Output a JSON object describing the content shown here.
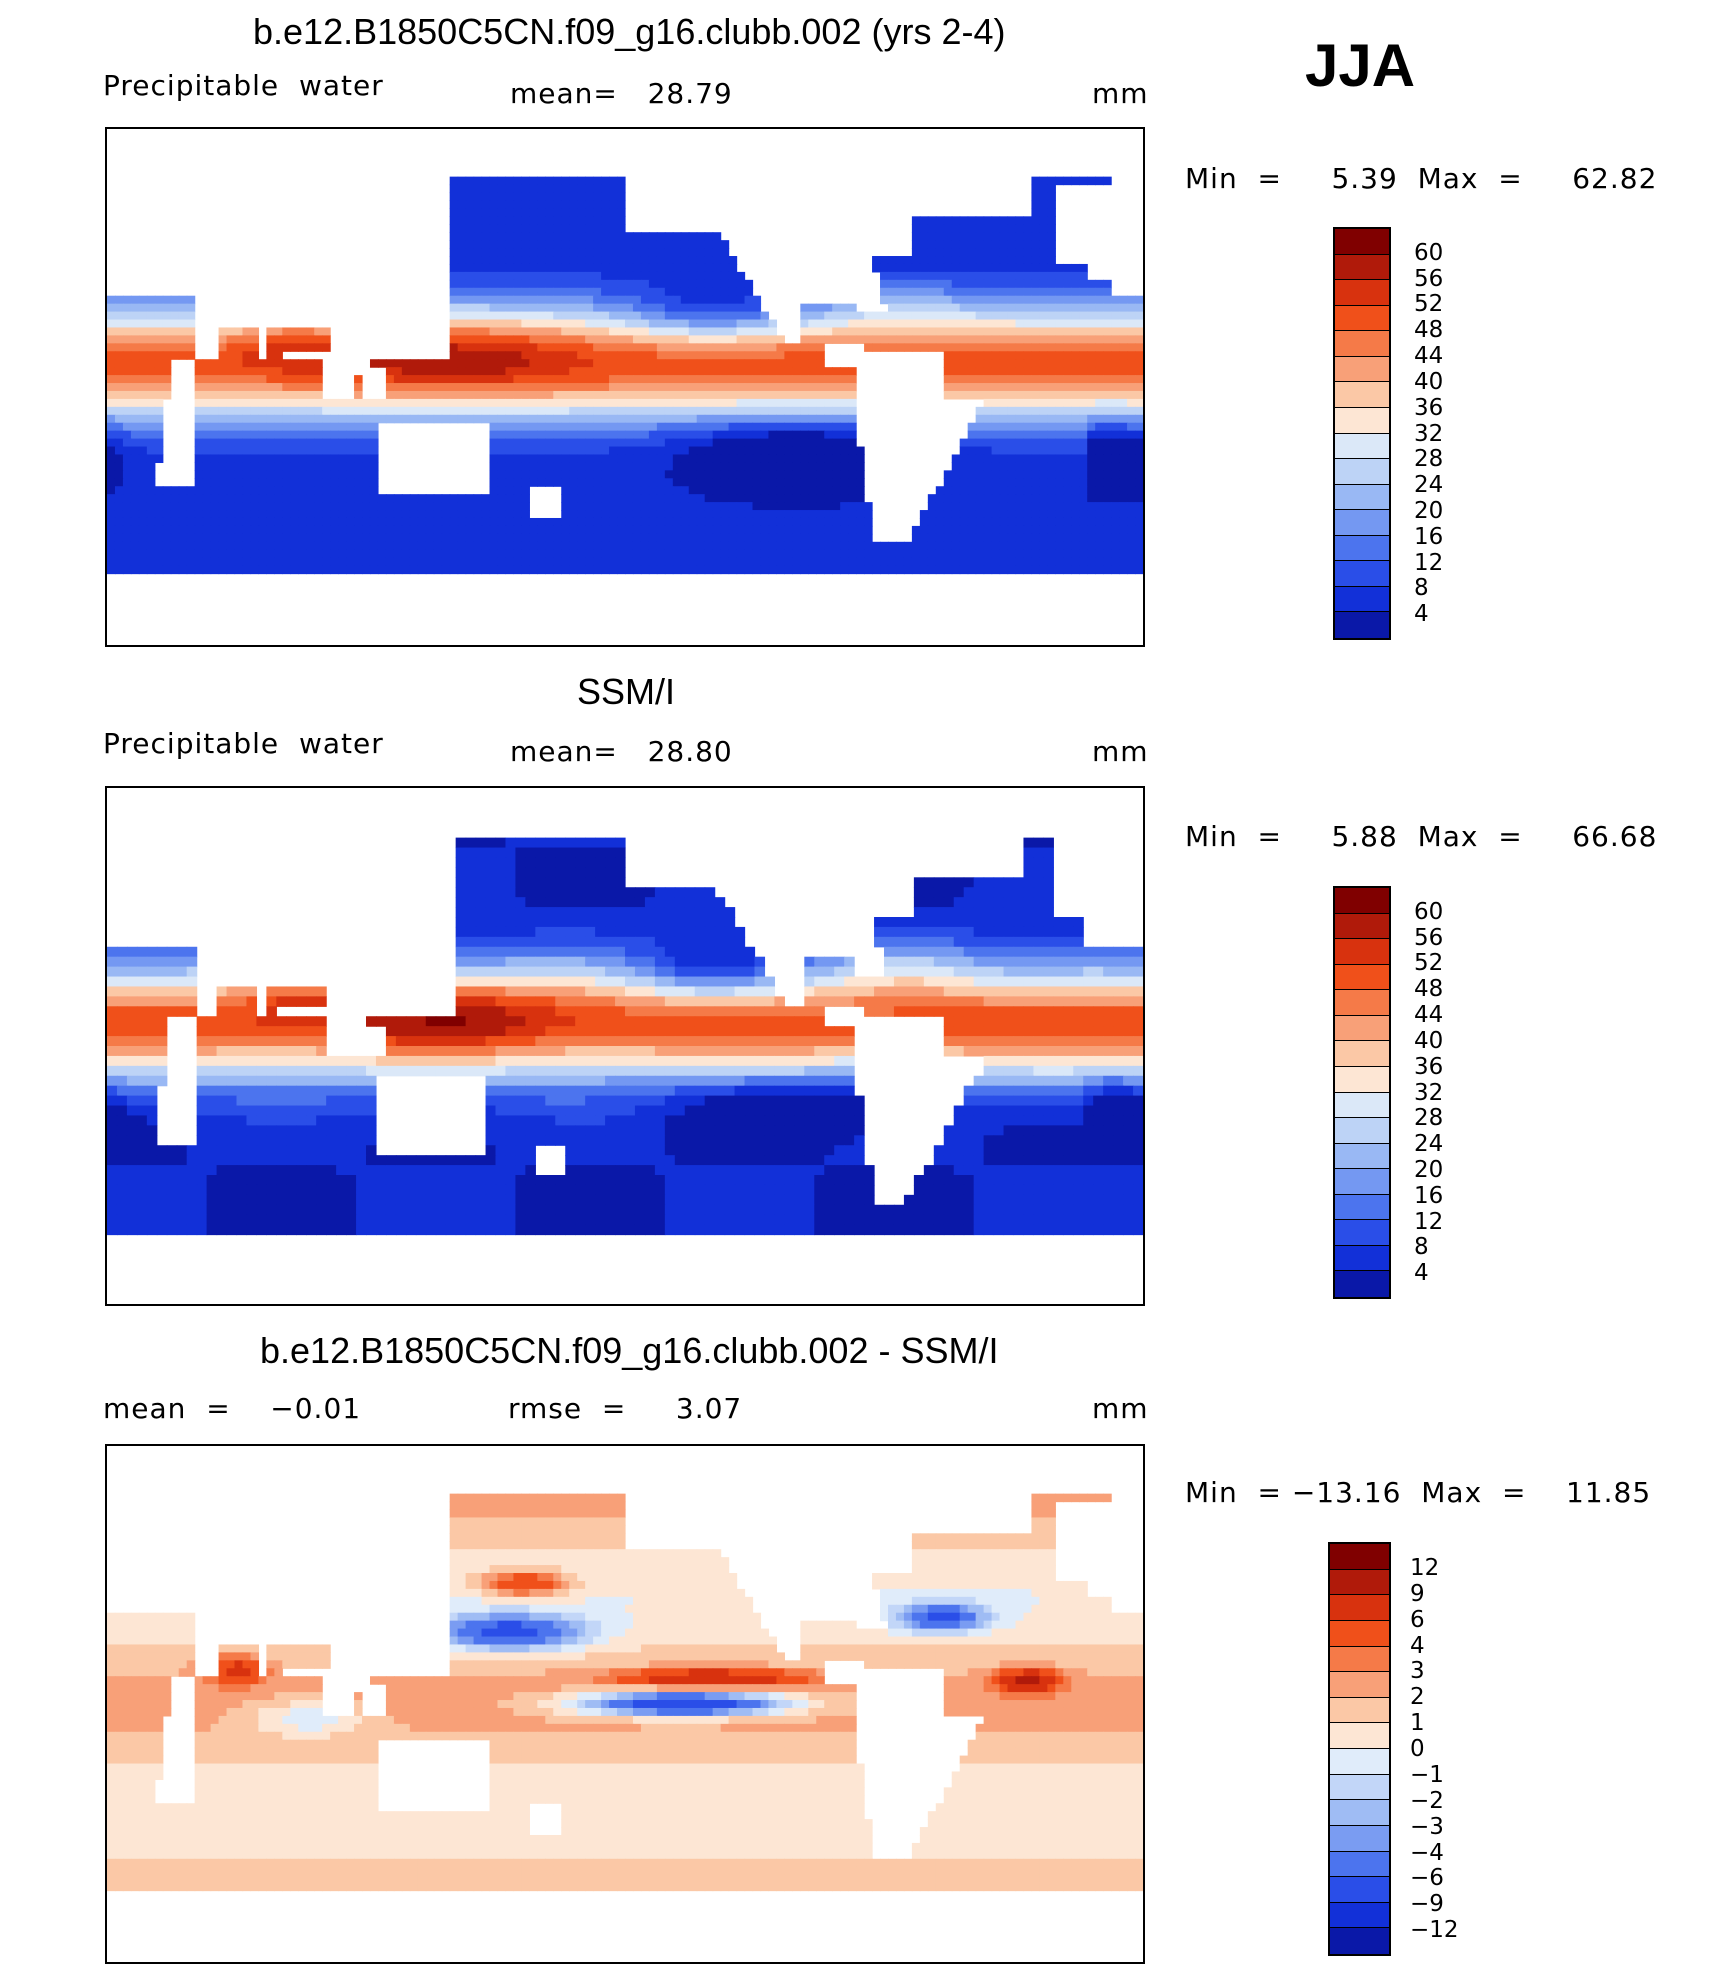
{
  "season": "JJA",
  "panels": [
    {
      "title": "b.e12.B1850C5CN.f09_g16.clubb.002 (yrs 2-4)",
      "left_label": "Precipitable  water",
      "mid_label": "mean=   28.79",
      "units": "mm",
      "minmax": "Min  =     5.39  Max  =     62.82",
      "field": "model",
      "levels": [
        "60",
        "56",
        "52",
        "48",
        "44",
        "40",
        "36",
        "32",
        "28",
        "24",
        "20",
        "16",
        "12",
        "8",
        "4"
      ]
    },
    {
      "title": "SSM/I",
      "left_label": "Precipitable  water",
      "mid_label": "mean=   28.80",
      "units": "mm",
      "minmax": "Min  =     5.88  Max  =     66.68",
      "field": "obs",
      "levels": [
        "60",
        "56",
        "52",
        "48",
        "44",
        "40",
        "36",
        "32",
        "28",
        "24",
        "20",
        "16",
        "12",
        "8",
        "4"
      ]
    },
    {
      "title": "b.e12.B1850C5CN.f09_g16.clubb.002 - SSM/I",
      "left_label": "mean  =    −0.01",
      "mid_label": "rmse  =     3.07",
      "units": "mm",
      "minmax": "Min  = −13.16  Max  =    11.85",
      "field": "diff",
      "levels": [
        "12",
        "9",
        "6",
        "4",
        "3",
        "2",
        "1",
        "0",
        "−1",
        "−2",
        "−3",
        "−4",
        "−6",
        "−9",
        "−12"
      ]
    }
  ],
  "colors": {
    "abs_scale": [
      "#800000",
      "#b01a0a",
      "#d8320e",
      "#f0501a",
      "#f57a48",
      "#f8a078",
      "#fbc8a6",
      "#fde6d4",
      "#dbe8f8",
      "#bdd3f6",
      "#99b8f4",
      "#7498f2",
      "#4c74ee",
      "#2a4ee8",
      "#1230d8",
      "#0a18a8"
    ],
    "diff_scale": [
      "#800000",
      "#b01a0a",
      "#d8320e",
      "#f0501a",
      "#f57a48",
      "#f8a078",
      "#fbc8a6",
      "#fde6d4",
      "#e0ecfa",
      "#c2d6f8",
      "#9fbcf4",
      "#7a9cf2",
      "#4c74ee",
      "#2a4ee8",
      "#1230d8",
      "#0a18a8"
    ]
  }
}
